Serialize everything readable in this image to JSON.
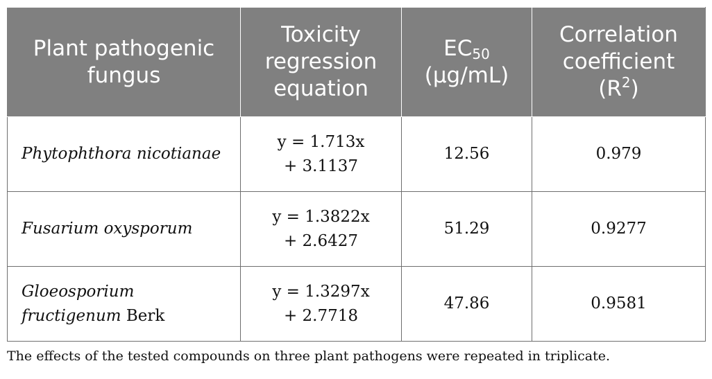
{
  "table": {
    "headers": {
      "fungus": "Plant pathogenic fungus",
      "equation": "Toxicity regression equation",
      "ec50_prefix": "EC",
      "ec50_sub": "50",
      "ec50_unit": "(µg/mL)",
      "corr_label": "Correlation coefficient",
      "corr_prefix": "(R",
      "corr_sup": "2",
      "corr_suffix": ")"
    },
    "rows": [
      {
        "fungus_italic": "Phytophthora nicotianae",
        "fungus_plain": "",
        "equation_line1": "y = 1.713x",
        "equation_line2": "+ 3.1137",
        "ec50": "12.56",
        "r2": "0.979"
      },
      {
        "fungus_italic": "Fusarium oxysporum",
        "fungus_plain": "",
        "equation_line1": "y = 1.3822x",
        "equation_line2": "+ 2.6427",
        "ec50": "51.29",
        "r2": "0.9277"
      },
      {
        "fungus_italic": "Gloeosporium fructigenum",
        "fungus_plain": " Berk",
        "equation_line1": "y = 1.3297x",
        "equation_line2": "+ 2.7718",
        "ec50": "47.86",
        "r2": "0.9581"
      }
    ]
  },
  "footnote": "The effects of the tested compounds on three plant pathogens were repeated in triplicate.",
  "colors": {
    "header_bg": "#808080",
    "header_text": "#ffffff",
    "border": "#6e6e6e"
  }
}
